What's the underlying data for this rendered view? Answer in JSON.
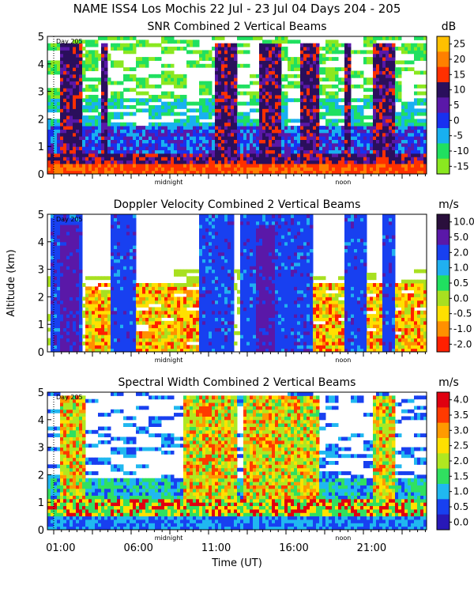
{
  "header": {
    "title": "NAME ISS4 Los Mochis  22 Jul - 23 Jul 04 Days 204 - 205"
  },
  "chart_data": [
    {
      "type": "heatmap",
      "title": "SNR Combined 2 Vertical Beams",
      "unit": "dB",
      "ylim": [
        0,
        5
      ],
      "yticks": [
        "0",
        "1",
        "2",
        "3",
        "4",
        "5"
      ],
      "ylabel": "",
      "colorbar_ticks": [
        "25",
        "20",
        "15",
        "10",
        "5",
        "0",
        "-5",
        "-10",
        "-15"
      ],
      "colorbar_colors": [
        "#ffc000",
        "#ff8000",
        "#ff3000",
        "#2a0f5c",
        "#5a18a8",
        "#1830f0",
        "#18b0f0",
        "#20e060",
        "#8ae820"
      ],
      "day_label": "Day 205",
      "markers": [
        "midnight",
        "noon"
      ]
    },
    {
      "type": "heatmap",
      "title": "Doppler Velocity Combined 2 Vertical Beams",
      "unit": "m/s",
      "ylim": [
        0,
        5
      ],
      "yticks": [
        "0",
        "1",
        "2",
        "3",
        "4",
        "5"
      ],
      "ylabel": "Altitude (km)",
      "colorbar_ticks": [
        "10.0",
        "5.0",
        "2.0",
        "1.0",
        "0.5",
        "0.0",
        "-0.5",
        "-1.0",
        "-2.0"
      ],
      "colorbar_colors": [
        "#2a0f3c",
        "#5a18a8",
        "#1840f0",
        "#20b0f0",
        "#20e060",
        "#a8e020",
        "#ffe000",
        "#ff9000",
        "#ff2000"
      ],
      "day_label": "Day 205",
      "markers": [
        "midnight",
        "noon"
      ]
    },
    {
      "type": "heatmap",
      "title": "Spectral Width Combined 2 Vertical Beams",
      "unit": "m/s",
      "ylim": [
        0,
        5
      ],
      "yticks": [
        "0",
        "1",
        "2",
        "3",
        "4",
        "5"
      ],
      "ylabel": "",
      "colorbar_ticks": [
        "4.0",
        "3.5",
        "3.0",
        "2.5",
        "2.0",
        "1.5",
        "1.0",
        "0.5",
        "0.0"
      ],
      "colorbar_colors": [
        "#e00010",
        "#ff3a00",
        "#ff9a00",
        "#ffe000",
        "#b0e820",
        "#30e060",
        "#20b8f0",
        "#1840f0",
        "#2818b8"
      ],
      "day_label": "Day 205",
      "markers": [
        "midnight",
        "noon"
      ]
    }
  ],
  "xaxis": {
    "label": "Time (UT)",
    "ticks": [
      "01:00",
      "06:00",
      "11:00",
      "16:00",
      "21:00"
    ]
  }
}
